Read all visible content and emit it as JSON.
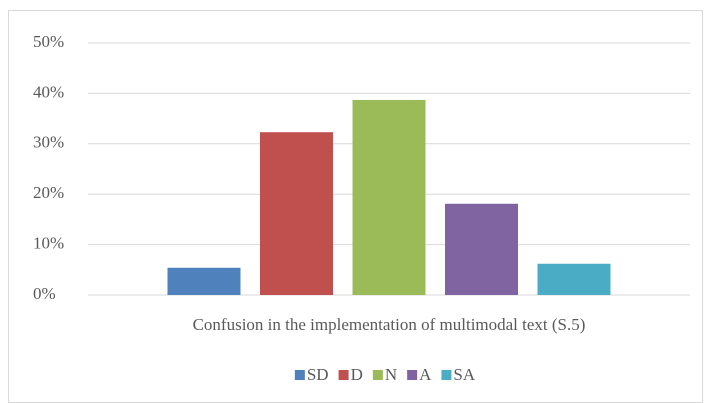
{
  "chart_data": {
    "type": "bar",
    "categories": [
      "Confusion in the implementation of multimodal text (S.5)"
    ],
    "series": [
      {
        "name": "SD",
        "color": "#4f81bd",
        "values": [
          5.4
        ]
      },
      {
        "name": "D",
        "color": "#c0504d",
        "values": [
          32.3
        ]
      },
      {
        "name": "N",
        "color": "#9bbb59",
        "values": [
          38.7
        ]
      },
      {
        "name": "A",
        "color": "#8064a2",
        "values": [
          18.1
        ]
      },
      {
        "name": "SA",
        "color": "#4bacc6",
        "values": [
          6.2
        ]
      }
    ],
    "ylim": [
      0,
      50
    ],
    "yticks": [
      {
        "value": 0,
        "label": "0%"
      },
      {
        "value": 10,
        "label": "10%"
      },
      {
        "value": 20,
        "label": "20%"
      },
      {
        "value": 30,
        "label": "30%"
      },
      {
        "value": 40,
        "label": "40%"
      },
      {
        "value": 50,
        "label": "50%"
      }
    ],
    "grid": true,
    "legend": "bottom"
  }
}
